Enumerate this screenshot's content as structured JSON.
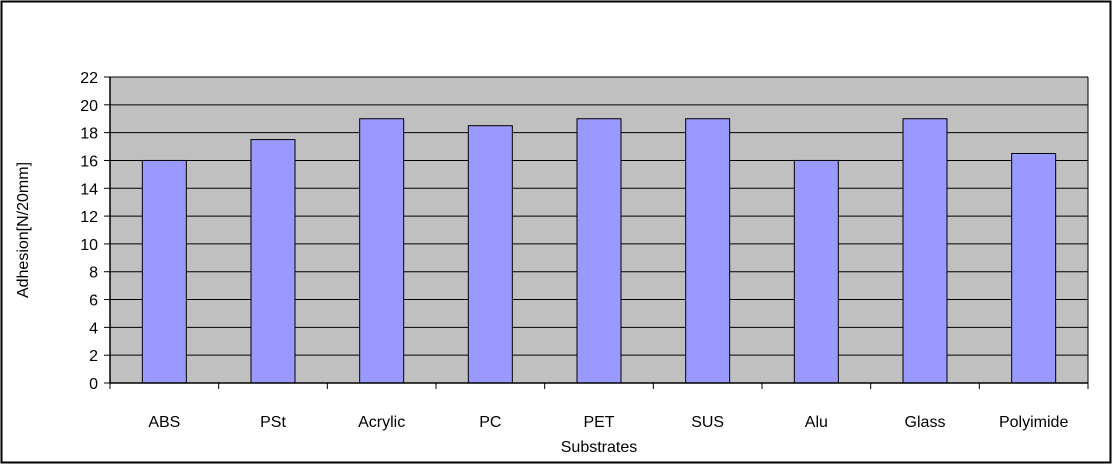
{
  "chart_data": {
    "type": "bar",
    "categories": [
      "ABS",
      "PSt",
      "Acrylic",
      "PC",
      "PET",
      "SUS",
      "Alu",
      "Glass",
      "Polyimide"
    ],
    "values": [
      16,
      17.5,
      19,
      18.5,
      19,
      19,
      16,
      19,
      16.5
    ],
    "xlabel": "Substrates",
    "ylabel": "Adhesion[N/20mm]",
    "ylim": [
      0,
      22
    ],
    "yticks": [
      0,
      2,
      4,
      6,
      8,
      10,
      12,
      14,
      16,
      18,
      20,
      22
    ],
    "grid": true,
    "legend": "none",
    "colors": {
      "bar_fill": "#9999ff",
      "plot_background": "#c0c0c0",
      "border": "#000000"
    }
  }
}
